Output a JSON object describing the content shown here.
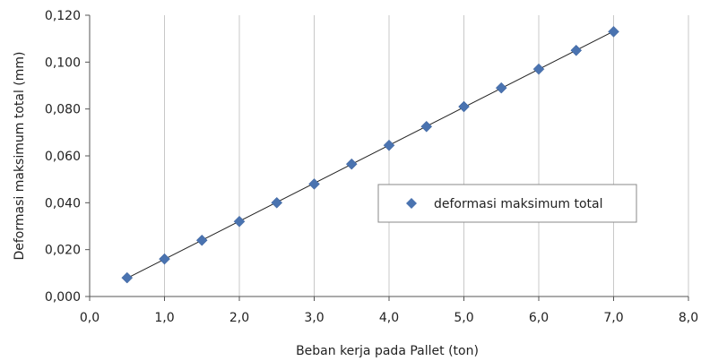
{
  "chart_data": {
    "type": "scatter",
    "xlabel": "Beban kerja pada Pallet (ton)",
    "ylabel": "Deformasi maksimum  total (mm)",
    "xlim": [
      0,
      8
    ],
    "ylim": [
      0,
      0.12
    ],
    "x_ticks": [
      0,
      1,
      2,
      3,
      4,
      5,
      6,
      7,
      8
    ],
    "x_tick_labels": [
      "0,0",
      "1,0",
      "2,0",
      "3,0",
      "4,0",
      "5,0",
      "6,0",
      "7,0",
      "8,0"
    ],
    "y_ticks": [
      0,
      0.02,
      0.04,
      0.06,
      0.08,
      0.1,
      0.12
    ],
    "y_tick_labels": [
      "0,000",
      "0,020",
      "0,040",
      "0,060",
      "0,080",
      "0,100",
      "0,120"
    ],
    "grid": "vertical",
    "legend_position": "right",
    "trendline": "linear",
    "series": [
      {
        "name": "deformasi maksimum total",
        "color": "#4a73b0",
        "marker": "diamond",
        "x": [
          0.5,
          1.0,
          1.5,
          2.0,
          2.5,
          3.0,
          3.5,
          4.0,
          4.5,
          5.0,
          5.5,
          6.0,
          6.5,
          7.0
        ],
        "y": [
          0.008,
          0.016,
          0.024,
          0.032,
          0.04,
          0.048,
          0.0565,
          0.0645,
          0.0725,
          0.081,
          0.089,
          0.097,
          0.105,
          0.113
        ]
      }
    ]
  }
}
